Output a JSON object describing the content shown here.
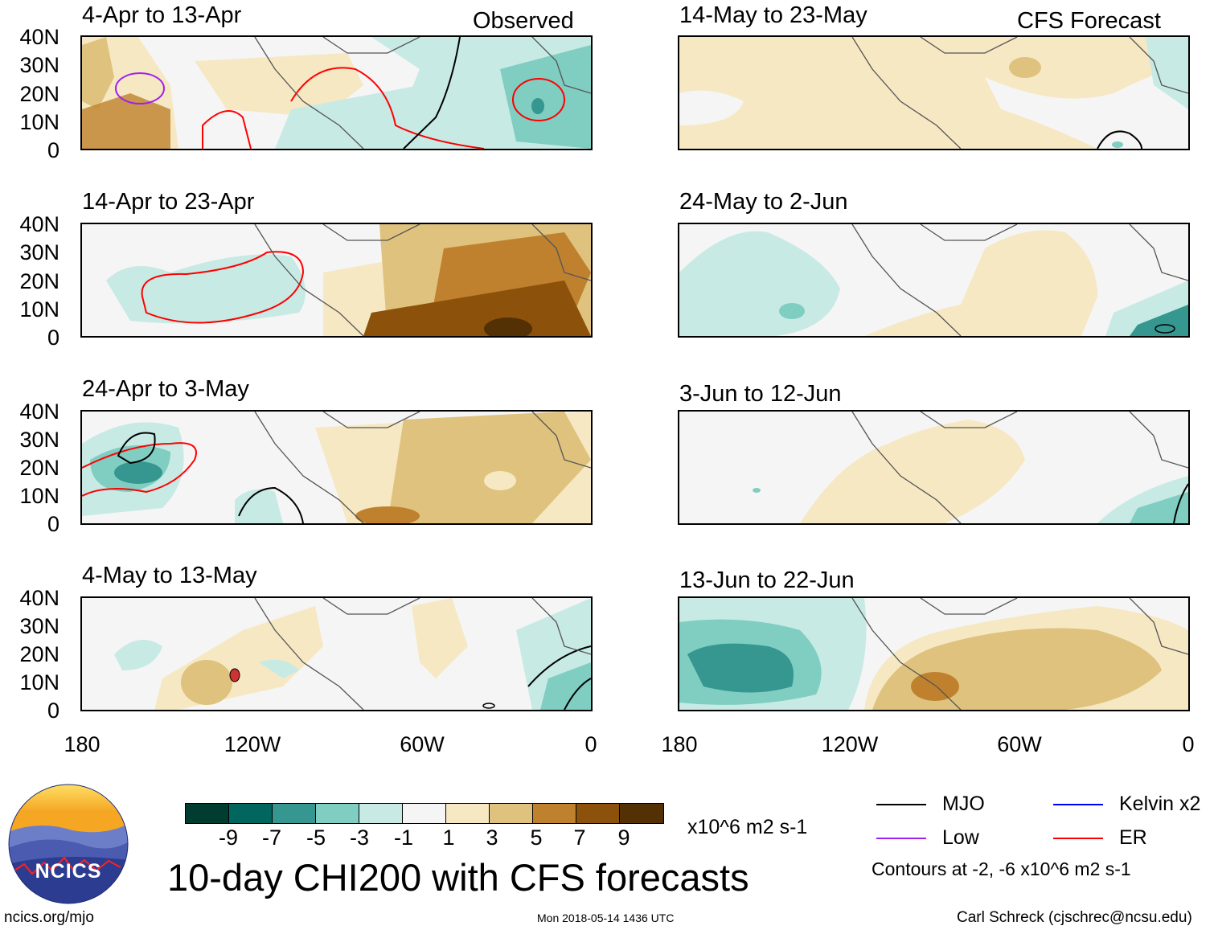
{
  "observed_label": "Observed",
  "forecast_label": "CFS Forecast",
  "panels_left": [
    {
      "title": "4-Apr to 13-Apr"
    },
    {
      "title": "14-Apr to 23-Apr"
    },
    {
      "title": "24-Apr to 3-May"
    },
    {
      "title": "4-May to 13-May"
    }
  ],
  "panels_right": [
    {
      "title": "14-May to 23-May"
    },
    {
      "title": "24-May to 2-Jun"
    },
    {
      "title": "3-Jun to 12-Jun"
    },
    {
      "title": "13-Jun to 22-Jun"
    }
  ],
  "y_ticks": [
    "40N",
    "30N",
    "20N",
    "10N",
    "0"
  ],
  "x_ticks": [
    "180",
    "120W",
    "60W",
    "0"
  ],
  "colorbar": {
    "colors": [
      "#003c30",
      "#01665e",
      "#35978f",
      "#80cdc1",
      "#c7eae5",
      "#f5f5f5",
      "#f6e8c3",
      "#dfc27d",
      "#bf812d",
      "#8c510a",
      "#543005"
    ],
    "labels": [
      "-9",
      "-7",
      "-5",
      "-3",
      "-1",
      "1",
      "3",
      "5",
      "7",
      "9"
    ],
    "units": "x10^6 m2 s-1"
  },
  "main_title": "10-day CHI200 with CFS forecasts",
  "legend": {
    "mjo": "MJO",
    "kelvin": "Kelvin x2",
    "low": "Low",
    "er": "ER",
    "contours": "Contours at -2, -6 x10^6 m2 s-1",
    "colors": {
      "mjo": "#000000",
      "kelvin": "#0000ff",
      "low": "#a020f0",
      "er": "#ff0000"
    }
  },
  "logo_text": "NCICS",
  "footer": {
    "url": "ncics.org/mjo",
    "timestamp": "Mon 2018-05-14 1436 UTC",
    "author": "Carl Schreck (cjschrec@ncsu.edu)"
  }
}
